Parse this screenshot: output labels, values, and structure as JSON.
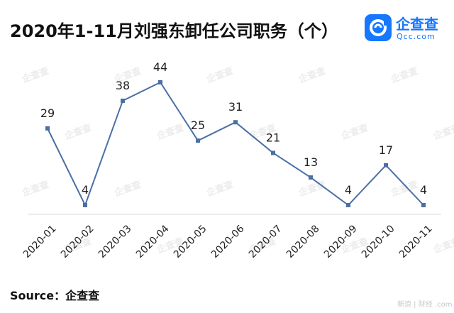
{
  "header": {
    "title": "2020年1-11月刘强东卸任公司职务（个）"
  },
  "logo": {
    "name": "企查查",
    "domain": "Qcc.com",
    "brand_color": "#1677ff"
  },
  "source": {
    "label": "Source：企查查"
  },
  "footer_mark": "新浪 | 财经 .com",
  "watermark_text": "企查查",
  "chart_data": {
    "type": "line",
    "title": "2020年1-11月刘强东卸任公司职务（个）",
    "xlabel": "",
    "ylabel": "",
    "categories": [
      "2020-01",
      "2020-02",
      "2020-03",
      "2020-04",
      "2020-05",
      "2020-06",
      "2020-07",
      "2020-08",
      "2020-09",
      "2020-10",
      "2020-11"
    ],
    "values": [
      29,
      4,
      38,
      44,
      25,
      31,
      21,
      13,
      4,
      17,
      4
    ],
    "ylim": [
      0,
      50
    ],
    "grid": false,
    "color": "#4a6fa5",
    "tick_label_rotation": -45
  }
}
